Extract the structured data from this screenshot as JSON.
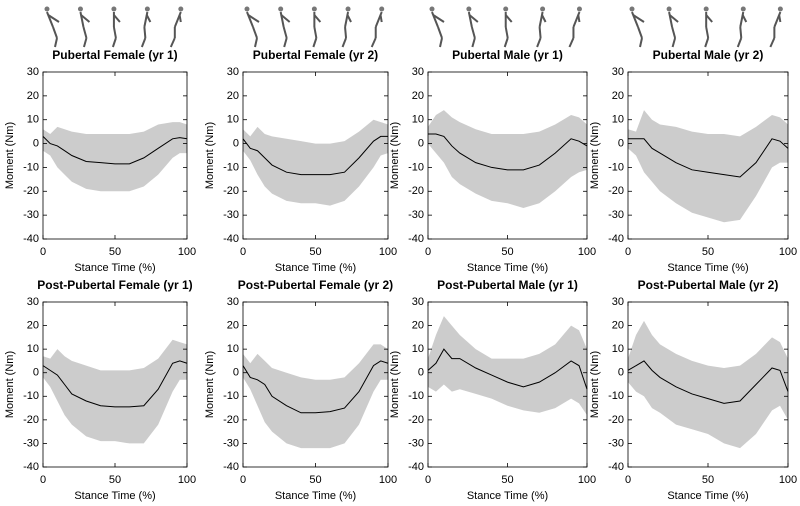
{
  "chart_data": [
    {
      "type": "line",
      "title": "Pubertal Female (yr 1)",
      "xlabel": "Stance Time (%)",
      "ylabel": "Moment (Nm)",
      "x": [
        0,
        5,
        10,
        15,
        20,
        30,
        40,
        50,
        60,
        70,
        80,
        90,
        95,
        100
      ],
      "series": [
        {
          "color": "#000000",
          "values": [
            3,
            0,
            -1,
            -3,
            -5,
            -7.5,
            -8,
            -8.5,
            -8.5,
            -6,
            -2,
            2,
            2.5,
            2
          ]
        }
      ],
      "band": {
        "color": "#cccccc",
        "upper": [
          6,
          4,
          7,
          6,
          5,
          4,
          4,
          4,
          4,
          5,
          8,
          9,
          9,
          8
        ],
        "lower": [
          -3,
          -5,
          -10,
          -13,
          -16,
          -19,
          -20,
          -20,
          -20,
          -18,
          -13,
          -6,
          -4,
          -4
        ]
      },
      "xlim": [
        0,
        100
      ],
      "ylim": [
        -40,
        30
      ],
      "xticks": [
        0,
        50,
        100
      ],
      "yticks": [
        -40,
        -30,
        -20,
        -10,
        0,
        10,
        20,
        30
      ]
    },
    {
      "type": "line",
      "title": "Pubertal Female (yr 2)",
      "xlabel": "Stance Time (%)",
      "ylabel": "Moment (Nm)",
      "x": [
        0,
        5,
        10,
        15,
        20,
        30,
        40,
        50,
        60,
        70,
        80,
        90,
        95,
        100
      ],
      "series": [
        {
          "color": "#000000",
          "values": [
            2,
            -2,
            -3,
            -6,
            -9,
            -12,
            -13,
            -13,
            -13,
            -12,
            -6,
            1,
            3,
            3
          ]
        }
      ],
      "band": {
        "color": "#cccccc",
        "upper": [
          6,
          3,
          7,
          4,
          3,
          2,
          1,
          0,
          0,
          1,
          5,
          10,
          9,
          8
        ],
        "lower": [
          -3,
          -7,
          -13,
          -18,
          -21,
          -24,
          -25,
          -25,
          -26,
          -24,
          -18,
          -10,
          -5,
          -4
        ]
      },
      "xlim": [
        0,
        100
      ],
      "ylim": [
        -40,
        30
      ],
      "xticks": [
        0,
        50,
        100
      ],
      "yticks": [
        -40,
        -30,
        -20,
        -10,
        0,
        10,
        20,
        30
      ]
    },
    {
      "type": "line",
      "title": "Pubertal Male (yr 1)",
      "xlabel": "Stance Time (%)",
      "ylabel": "Moment (Nm)",
      "x": [
        0,
        5,
        10,
        15,
        20,
        30,
        40,
        50,
        60,
        70,
        80,
        90,
        95,
        100
      ],
      "series": [
        {
          "color": "#000000",
          "values": [
            4,
            4,
            3,
            -1,
            -4,
            -8,
            -10,
            -11,
            -11,
            -9,
            -4,
            2,
            1,
            -1
          ]
        }
      ],
      "band": {
        "color": "#cccccc",
        "upper": [
          7,
          12,
          14,
          11,
          9,
          6,
          4,
          4,
          4,
          5,
          8,
          12,
          11,
          8
        ],
        "lower": [
          0,
          -4,
          -8,
          -14,
          -17,
          -21,
          -24,
          -25,
          -27,
          -25,
          -20,
          -14,
          -12,
          -11
        ]
      },
      "xlim": [
        0,
        100
      ],
      "ylim": [
        -40,
        30
      ],
      "xticks": [
        0,
        50,
        100
      ],
      "yticks": [
        -40,
        -30,
        -20,
        -10,
        0,
        10,
        20,
        30
      ]
    },
    {
      "type": "line",
      "title": "Pubertal Male (yr 2)",
      "xlabel": "Stance Time (%)",
      "ylabel": "Moment (Nm)",
      "x": [
        0,
        5,
        10,
        15,
        20,
        30,
        40,
        50,
        60,
        70,
        80,
        90,
        95,
        100
      ],
      "series": [
        {
          "color": "#000000",
          "values": [
            2,
            2,
            2,
            -2,
            -4,
            -8,
            -11,
            -12,
            -13,
            -14,
            -8,
            2,
            1,
            -2
          ]
        }
      ],
      "band": {
        "color": "#cccccc",
        "upper": [
          6,
          5,
          14,
          10,
          8,
          7,
          5,
          4,
          4,
          3,
          7,
          12,
          11,
          8
        ],
        "lower": [
          -2,
          -5,
          -12,
          -16,
          -20,
          -25,
          -29,
          -31,
          -33,
          -32,
          -22,
          -10,
          -8,
          -8
        ]
      },
      "xlim": [
        0,
        100
      ],
      "ylim": [
        -40,
        30
      ],
      "xticks": [
        0,
        50,
        100
      ],
      "yticks": [
        -40,
        -30,
        -20,
        -10,
        0,
        10,
        20,
        30
      ]
    },
    {
      "type": "line",
      "title": "Post-Pubertal Female (yr 1)",
      "xlabel": "Stance Time (%)",
      "ylabel": "Moment (Nm)",
      "x": [
        0,
        5,
        10,
        15,
        20,
        30,
        40,
        50,
        60,
        70,
        80,
        90,
        95,
        100
      ],
      "series": [
        {
          "color": "#000000",
          "values": [
            3,
            1,
            -1,
            -5,
            -9,
            -12,
            -14,
            -14.5,
            -14.5,
            -14,
            -7,
            4,
            5,
            4
          ]
        }
      ],
      "band": {
        "color": "#cccccc",
        "upper": [
          7,
          6,
          10,
          7,
          5,
          3,
          1,
          1,
          1,
          2,
          6,
          14,
          13,
          12
        ],
        "lower": [
          -2,
          -6,
          -12,
          -18,
          -22,
          -27,
          -29,
          -29,
          -30,
          -30,
          -22,
          -8,
          -3,
          -3
        ]
      },
      "xlim": [
        0,
        100
      ],
      "ylim": [
        -40,
        30
      ],
      "xticks": [
        0,
        50,
        100
      ],
      "yticks": [
        -40,
        -30,
        -20,
        -10,
        0,
        10,
        20,
        30
      ]
    },
    {
      "type": "line",
      "title": "Post-Pubertal Female (yr 2)",
      "xlabel": "Stance Time (%)",
      "ylabel": "Moment (Nm)",
      "x": [
        0,
        5,
        10,
        15,
        20,
        30,
        40,
        50,
        60,
        70,
        80,
        90,
        95,
        100
      ],
      "series": [
        {
          "color": "#000000",
          "values": [
            3,
            -2,
            -3,
            -5,
            -10,
            -14,
            -17,
            -17,
            -16.5,
            -15,
            -8,
            3,
            5,
            4
          ]
        }
      ],
      "band": {
        "color": "#cccccc",
        "upper": [
          8,
          4,
          8,
          5,
          2,
          0,
          -2,
          -3,
          -3,
          -2,
          4,
          12,
          12,
          10
        ],
        "lower": [
          -2,
          -7,
          -14,
          -21,
          -25,
          -30,
          -32,
          -32,
          -32,
          -30,
          -22,
          -8,
          -3,
          -3
        ]
      },
      "xlim": [
        0,
        100
      ],
      "ylim": [
        -40,
        30
      ],
      "xticks": [
        0,
        50,
        100
      ],
      "yticks": [
        -40,
        -30,
        -20,
        -10,
        0,
        10,
        20,
        30
      ]
    },
    {
      "type": "line",
      "title": "Post-Pubertal Male (yr 1)",
      "xlabel": "Stance Time (%)",
      "ylabel": "Moment (Nm)",
      "x": [
        0,
        5,
        10,
        15,
        20,
        30,
        40,
        50,
        60,
        70,
        80,
        90,
        95,
        100
      ],
      "series": [
        {
          "color": "#000000",
          "values": [
            1,
            4,
            10,
            6,
            6,
            2,
            -1,
            -4,
            -6,
            -4,
            0,
            5,
            3,
            -7
          ]
        }
      ],
      "band": {
        "color": "#cccccc",
        "upper": [
          6,
          16,
          24,
          20,
          16,
          10,
          6,
          6,
          6,
          8,
          12,
          20,
          18,
          10
        ],
        "lower": [
          -6,
          -8,
          -5,
          -8,
          -7,
          -9,
          -11,
          -14,
          -16,
          -17,
          -15,
          -11,
          -13,
          -18
        ]
      },
      "xlim": [
        0,
        100
      ],
      "ylim": [
        -40,
        30
      ],
      "xticks": [
        0,
        50,
        100
      ],
      "yticks": [
        -40,
        -30,
        -20,
        -10,
        0,
        10,
        20,
        30
      ]
    },
    {
      "type": "line",
      "title": "Post-Pubertal Male (yr 2)",
      "xlabel": "Stance Time (%)",
      "ylabel": "Moment (Nm)",
      "x": [
        0,
        5,
        10,
        15,
        20,
        30,
        40,
        50,
        60,
        70,
        80,
        90,
        95,
        100
      ],
      "series": [
        {
          "color": "#000000",
          "values": [
            1,
            3,
            5,
            1,
            -2,
            -6,
            -9,
            -11,
            -13,
            -12,
            -5,
            2,
            1,
            -8
          ]
        }
      ],
      "band": {
        "color": "#cccccc",
        "upper": [
          6,
          16,
          22,
          16,
          12,
          8,
          5,
          3,
          2,
          3,
          8,
          15,
          13,
          6
        ],
        "lower": [
          -4,
          -8,
          -10,
          -15,
          -17,
          -22,
          -24,
          -26,
          -30,
          -32,
          -26,
          -16,
          -14,
          -20
        ]
      },
      "xlim": [
        0,
        100
      ],
      "ylim": [
        -40,
        30
      ],
      "xticks": [
        0,
        50,
        100
      ],
      "yticks": [
        -40,
        -30,
        -20,
        -10,
        0,
        10,
        20,
        30
      ]
    }
  ]
}
